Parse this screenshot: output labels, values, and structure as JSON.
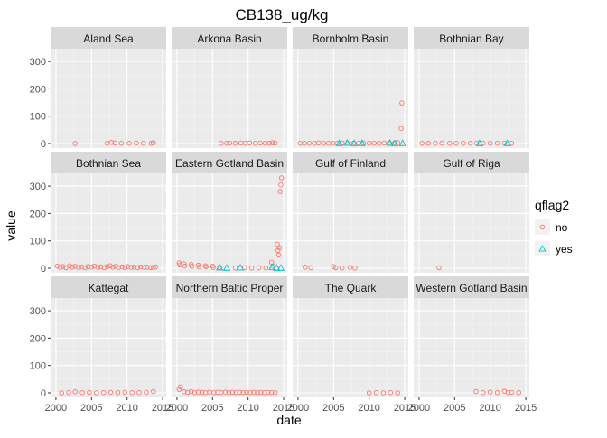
{
  "chart_data": {
    "type": "scatter",
    "title": "CB138_ug/kg",
    "xlabel": "date",
    "ylabel": "value",
    "facet_layout": "4x3",
    "x_ticks": [
      2000,
      2005,
      2010,
      2015
    ],
    "x_tick_labels": [
      "2000",
      "2005",
      "2010",
      "2015"
    ],
    "xlim": [
      2000,
      2015
    ],
    "y_ticks": [
      0,
      100,
      200,
      300
    ],
    "y_tick_labels": [
      "0",
      "100",
      "200",
      "300"
    ],
    "ylim": [
      0,
      330
    ],
    "grid": true,
    "legend": {
      "title": "qflag2",
      "position": "right",
      "entries": [
        {
          "label": "no",
          "shape": "circle",
          "color": "#F8766D"
        },
        {
          "label": "yes",
          "shape": "triangle",
          "color": "#00BFC4"
        }
      ]
    },
    "colors": {
      "no": "#F8766D",
      "yes": "#00BFC4",
      "panel_bg": "#EBEBEB",
      "strip_bg": "#D9D9D9",
      "grid": "#FFFFFF"
    },
    "panels": [
      {
        "name": "Aland Sea",
        "no": [
          [
            2002.7,
            0
          ],
          [
            2007.2,
            1
          ],
          [
            2007.8,
            4
          ],
          [
            2008.3,
            2
          ],
          [
            2009.2,
            1
          ],
          [
            2010.3,
            1
          ],
          [
            2011.3,
            2
          ],
          [
            2012.3,
            1
          ],
          [
            2013.4,
            1
          ],
          [
            2013.7,
            3
          ]
        ],
        "yes": []
      },
      {
        "name": "Arkona Basin",
        "no": [
          [
            2006.2,
            1
          ],
          [
            2007.0,
            1
          ],
          [
            2007.4,
            2
          ],
          [
            2008.2,
            1
          ],
          [
            2009.0,
            2
          ],
          [
            2009.6,
            1
          ],
          [
            2010.2,
            2
          ],
          [
            2011.0,
            1
          ],
          [
            2011.7,
            2
          ],
          [
            2012.4,
            1
          ],
          [
            2013.0,
            1
          ],
          [
            2013.4,
            3
          ],
          [
            2013.8,
            2
          ]
        ],
        "yes": []
      },
      {
        "name": "Bornholm Basin",
        "no": [
          [
            2000.3,
            1
          ],
          [
            2000.9,
            1
          ],
          [
            2001.6,
            1
          ],
          [
            2002.3,
            1
          ],
          [
            2002.9,
            2
          ],
          [
            2003.6,
            1
          ],
          [
            2004.3,
            1
          ],
          [
            2004.9,
            1
          ],
          [
            2005.5,
            1
          ],
          [
            2006.2,
            2
          ],
          [
            2007.0,
            1
          ],
          [
            2007.8,
            1
          ],
          [
            2008.5,
            1
          ],
          [
            2009.2,
            2
          ],
          [
            2010.0,
            1
          ],
          [
            2010.7,
            1
          ],
          [
            2011.4,
            1
          ],
          [
            2012.1,
            2
          ],
          [
            2012.8,
            1
          ],
          [
            2013.5,
            1
          ],
          [
            2014.0,
            4
          ],
          [
            2014.5,
            55
          ],
          [
            2014.6,
            148
          ]
        ],
        "yes": [
          [
            2005.8,
            1
          ],
          [
            2006.9,
            2
          ],
          [
            2007.9,
            1
          ],
          [
            2009.0,
            1
          ],
          [
            2012.9,
            2
          ],
          [
            2013.6,
            1
          ],
          [
            2014.7,
            1
          ]
        ]
      },
      {
        "name": "Bothnian Bay",
        "no": [
          [
            2000.4,
            1
          ],
          [
            2001.3,
            1
          ],
          [
            2002.3,
            1
          ],
          [
            2003.2,
            1
          ],
          [
            2004.3,
            1
          ],
          [
            2005.2,
            1
          ],
          [
            2006.2,
            1
          ],
          [
            2007.2,
            1
          ],
          [
            2008.1,
            1
          ],
          [
            2009.0,
            1
          ],
          [
            2010.0,
            1
          ],
          [
            2011.0,
            1
          ],
          [
            2012.0,
            1
          ],
          [
            2013.0,
            1
          ]
        ],
        "yes": [
          [
            2008.5,
            1
          ],
          [
            2012.4,
            1
          ]
        ]
      },
      {
        "name": "Bothnian Sea",
        "no": [
          [
            2000.2,
            8
          ],
          [
            2000.6,
            3
          ],
          [
            2001.0,
            6
          ],
          [
            2001.4,
            2
          ],
          [
            2001.9,
            9
          ],
          [
            2002.3,
            4
          ],
          [
            2002.7,
            7
          ],
          [
            2003.2,
            3
          ],
          [
            2003.6,
            5
          ],
          [
            2004.1,
            2
          ],
          [
            2004.5,
            6
          ],
          [
            2005.0,
            4
          ],
          [
            2005.4,
            8
          ],
          [
            2005.9,
            3
          ],
          [
            2006.3,
            5
          ],
          [
            2006.8,
            2
          ],
          [
            2007.2,
            6
          ],
          [
            2007.6,
            9
          ],
          [
            2008.0,
            4
          ],
          [
            2008.4,
            7
          ],
          [
            2008.8,
            3
          ],
          [
            2009.3,
            5
          ],
          [
            2009.7,
            2
          ],
          [
            2010.1,
            6
          ],
          [
            2010.6,
            3
          ],
          [
            2011.0,
            4
          ],
          [
            2011.5,
            2
          ],
          [
            2011.9,
            5
          ],
          [
            2012.4,
            3
          ],
          [
            2012.8,
            4
          ],
          [
            2013.3,
            2
          ],
          [
            2013.7,
            3
          ],
          [
            2014.0,
            5
          ]
        ],
        "yes": []
      },
      {
        "name": "Eastern Gotland Basin",
        "no": [
          [
            2000.3,
            20
          ],
          [
            2000.4,
            12
          ],
          [
            2001.0,
            16
          ],
          [
            2001.1,
            8
          ],
          [
            2002.0,
            14
          ],
          [
            2002.1,
            7
          ],
          [
            2003.0,
            11
          ],
          [
            2003.1,
            5
          ],
          [
            2004.0,
            9
          ],
          [
            2004.1,
            5
          ],
          [
            2005.0,
            8
          ],
          [
            2005.1,
            3
          ],
          [
            2006.0,
            3
          ],
          [
            2008.2,
            1
          ],
          [
            2009.5,
            2
          ],
          [
            2010.5,
            1
          ],
          [
            2011.5,
            2
          ],
          [
            2012.5,
            1
          ],
          [
            2013.3,
            22
          ],
          [
            2013.5,
            8
          ],
          [
            2014.1,
            88
          ],
          [
            2014.2,
            65
          ],
          [
            2014.3,
            48
          ],
          [
            2014.4,
            75
          ],
          [
            2014.5,
            280
          ],
          [
            2014.6,
            305
          ],
          [
            2014.7,
            330
          ]
        ],
        "yes": [
          [
            2006.0,
            2
          ],
          [
            2007.0,
            1
          ],
          [
            2008.9,
            2
          ],
          [
            2013.4,
            4
          ],
          [
            2014.0,
            1
          ],
          [
            2014.6,
            1
          ]
        ]
      },
      {
        "name": "Gulf of Finland",
        "no": [
          [
            2001.0,
            4
          ],
          [
            2001.8,
            2
          ],
          [
            2005.0,
            6
          ],
          [
            2005.3,
            2
          ],
          [
            2006.2,
            1
          ],
          [
            2007.3,
            3
          ],
          [
            2008.0,
            1
          ]
        ],
        "yes": []
      },
      {
        "name": "Gulf of Riga",
        "no": [
          [
            2002.8,
            2
          ]
        ],
        "yes": []
      },
      {
        "name": "Kattegat",
        "no": [
          [
            2000.8,
            0
          ],
          [
            2001.8,
            1
          ],
          [
            2002.7,
            4
          ],
          [
            2003.7,
            1
          ],
          [
            2004.7,
            2
          ],
          [
            2005.7,
            0
          ],
          [
            2006.7,
            1
          ],
          [
            2007.7,
            2
          ],
          [
            2008.7,
            1
          ],
          [
            2009.7,
            2
          ],
          [
            2010.7,
            1
          ],
          [
            2011.7,
            1
          ],
          [
            2012.7,
            2
          ],
          [
            2013.7,
            5
          ]
        ],
        "yes": []
      },
      {
        "name": "Northern Baltic Proper",
        "no": [
          [
            2000.3,
            12
          ],
          [
            2000.5,
            22
          ],
          [
            2001.0,
            4
          ],
          [
            2001.5,
            2
          ],
          [
            2002.0,
            5
          ],
          [
            2002.5,
            1
          ],
          [
            2003.0,
            3
          ],
          [
            2003.5,
            2
          ],
          [
            2004.0,
            1
          ],
          [
            2004.6,
            3
          ],
          [
            2005.2,
            1
          ],
          [
            2005.7,
            2
          ],
          [
            2006.2,
            1
          ],
          [
            2006.8,
            3
          ],
          [
            2007.3,
            1
          ],
          [
            2007.8,
            2
          ],
          [
            2008.3,
            1
          ],
          [
            2008.8,
            2
          ],
          [
            2009.3,
            1
          ],
          [
            2009.8,
            2
          ],
          [
            2010.3,
            1
          ],
          [
            2010.8,
            2
          ],
          [
            2011.3,
            1
          ],
          [
            2011.8,
            2
          ],
          [
            2012.3,
            1
          ],
          [
            2012.8,
            2
          ],
          [
            2013.3,
            1
          ],
          [
            2013.8,
            1
          ]
        ],
        "yes": []
      },
      {
        "name": "The Quark",
        "no": [
          [
            2010.0,
            0
          ],
          [
            2011.0,
            1
          ],
          [
            2012.0,
            0
          ],
          [
            2013.0,
            1
          ],
          [
            2014.0,
            0
          ]
        ],
        "yes": []
      },
      {
        "name": "Western Gotland Basin",
        "no": [
          [
            2008.0,
            5
          ],
          [
            2009.0,
            1
          ],
          [
            2010.0,
            3
          ],
          [
            2011.0,
            1
          ],
          [
            2012.0,
            6
          ],
          [
            2012.5,
            1
          ],
          [
            2013.0,
            2
          ],
          [
            2014.0,
            1
          ]
        ],
        "yes": []
      }
    ]
  }
}
